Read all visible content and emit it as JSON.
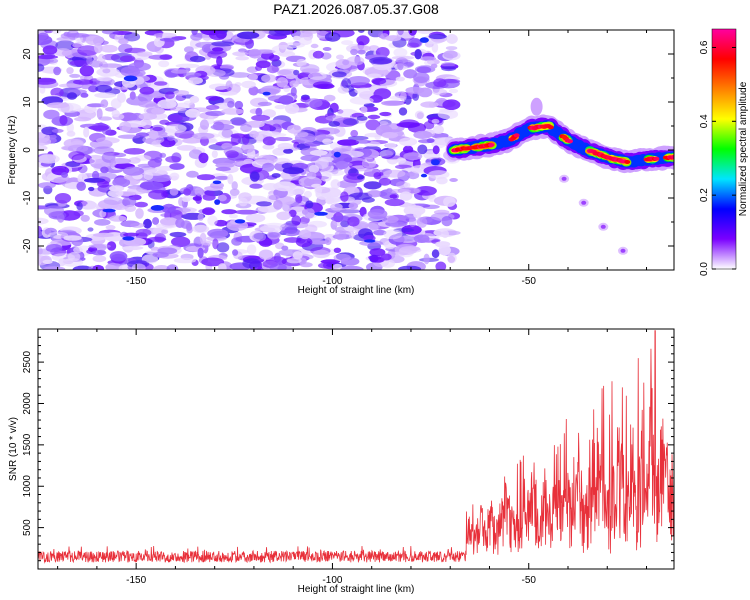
{
  "title": "PAZ1.2026.087.05.37.G08",
  "chart_data": [
    {
      "type": "heatmap",
      "title": "PAZ1.2026.087.05.37.G08",
      "xlabel": "Height of straight line (km)",
      "ylabel": "Frequency (Hz)",
      "xlim": [
        -175,
        -13
      ],
      "ylim": [
        -25,
        25
      ],
      "x_ticks": [
        -150,
        -100,
        -50
      ],
      "y_ticks": [
        -20,
        -10,
        0,
        10,
        20
      ],
      "colorbar": {
        "label": "Normalized spectral amplitude",
        "range": [
          0,
          0.65
        ],
        "ticks": [
          0.0,
          0.2,
          0.4,
          0.6
        ],
        "colors": [
          "#ffffff",
          "#7a00ff",
          "#0000ff",
          "#00e5ff",
          "#00ff00",
          "#ffff00",
          "#ff8000",
          "#ff0000",
          "#ff00a0"
        ]
      },
      "noise_region": {
        "x": [
          -175,
          -69
        ],
        "y": [
          -25,
          25
        ],
        "amplitude_range": [
          0.0,
          0.15
        ]
      },
      "ridge": {
        "x": [
          -69,
          -60,
          -55,
          -50,
          -45,
          -40,
          -35,
          -30,
          -25,
          -20,
          -13
        ],
        "y": [
          0,
          1,
          2,
          4.5,
          5,
          2,
          0,
          -1.5,
          -2.5,
          -2,
          -1.5
        ],
        "peak_amplitude": 0.65
      },
      "secondary_branch": {
        "x": [
          -41,
          -36,
          -31,
          -26
        ],
        "y": [
          -6,
          -11,
          -16,
          -21
        ]
      }
    },
    {
      "type": "line",
      "xlabel": "Height of straight line (km)",
      "ylabel": "SNR (10 * v/v)",
      "xlim": [
        -175,
        -13
      ],
      "ylim": [
        0,
        2900
      ],
      "x_ticks": [
        -150,
        -100,
        -50
      ],
      "y_ticks": [
        500,
        1000,
        1500,
        2000,
        2500
      ],
      "line_color": "#e8303a",
      "series": [
        {
          "name": "SNR",
          "x_range": [
            -175,
            -13
          ],
          "noise_level": 150,
          "noise_region_end": -66,
          "max_value": 2880
        }
      ]
    }
  ]
}
